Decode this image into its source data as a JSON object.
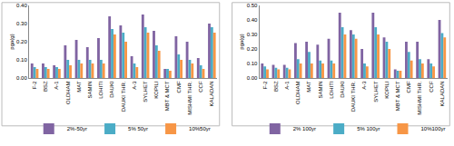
{
  "chart_data": [
    {
      "type": "bar",
      "y_label": "pga(g)",
      "categories": [
        "F-2",
        "BSZ",
        "A-1",
        "OLDHAM",
        "MAT",
        "SAMIN",
        "LOHITI",
        "DAUKI",
        "DAUKI THR.",
        "A-3",
        "SYLHET",
        "KOPILI",
        "MBT & MCT",
        "CMF",
        "MISHMI THR.",
        "CCF",
        "KALADAN"
      ],
      "series": [
        {
          "name": "2%-50yr",
          "color": "#8064a2",
          "values": [
            0.08,
            0.08,
            0.07,
            0.18,
            0.21,
            0.17,
            0.22,
            0.34,
            0.29,
            0.12,
            0.35,
            0.26,
            0.05,
            0.23,
            0.2,
            0.11,
            0.3
          ]
        },
        {
          "name": "5% 50yr",
          "color": "#4bacc6",
          "values": [
            0.06,
            0.06,
            0.06,
            0.1,
            0.1,
            0.1,
            0.1,
            0.27,
            0.25,
            0.08,
            0.28,
            0.18,
            0.05,
            0.13,
            0.1,
            0.07,
            0.28
          ]
        },
        {
          "name": "10%50yr",
          "color": "#f79646",
          "values": [
            0.05,
            0.05,
            0.05,
            0.07,
            0.08,
            0.08,
            0.08,
            0.24,
            0.2,
            0.06,
            0.25,
            0.15,
            0.04,
            0.1,
            0.08,
            0.05,
            0.25
          ]
        }
      ],
      "ylim": [
        0,
        0.4
      ],
      "yticks": [
        {
          "value": 0,
          "label": "0.00"
        },
        {
          "value": 0.1,
          "label": "0.10"
        },
        {
          "value": 0.2,
          "label": "0.20"
        },
        {
          "value": 0.3,
          "label": "0.30"
        },
        {
          "value": 0.4,
          "label": "0.40"
        }
      ],
      "grid": false,
      "legend": "bottom"
    },
    {
      "type": "bar",
      "y_label": "pga(g)",
      "categories": [
        "F-2",
        "BSZ",
        "A-1",
        "OLDHAM",
        "MAT",
        "SAMIN",
        "LOHITI",
        "DAUKI",
        "DAUKI THR.",
        "A-3",
        "SYLHET",
        "KOPILI",
        "MBT & MCT",
        "CMF",
        "MISHMI THR.",
        "CCF",
        "KALADAN"
      ],
      "series": [
        {
          "name": "2% 100yr",
          "color": "#8064a2",
          "values": [
            0.1,
            0.09,
            0.09,
            0.24,
            0.25,
            0.23,
            0.27,
            0.45,
            0.33,
            0.2,
            0.45,
            0.28,
            0.06,
            0.25,
            0.25,
            0.13,
            0.4
          ]
        },
        {
          "name": "5% 100yr",
          "color": "#4bacc6",
          "values": [
            0.08,
            0.07,
            0.07,
            0.13,
            0.18,
            0.12,
            0.12,
            0.35,
            0.3,
            0.1,
            0.35,
            0.25,
            0.05,
            0.18,
            0.13,
            0.1,
            0.31
          ]
        },
        {
          "name": "10%100yr",
          "color": "#f79646",
          "values": [
            0.06,
            0.06,
            0.06,
            0.1,
            0.1,
            0.1,
            0.1,
            0.3,
            0.27,
            0.08,
            0.3,
            0.2,
            0.05,
            0.12,
            0.1,
            0.08,
            0.28
          ]
        }
      ],
      "ylim": [
        0,
        0.5
      ],
      "yticks": [
        {
          "value": 0,
          "label": "0.00"
        },
        {
          "value": 0.1,
          "label": "0.10"
        },
        {
          "value": 0.2,
          "label": "0.20"
        },
        {
          "value": 0.3,
          "label": "0.30"
        },
        {
          "value": 0.4,
          "label": "0.40"
        },
        {
          "value": 0.5,
          "label": "0.50"
        }
      ],
      "grid": false,
      "legend": "bottom"
    }
  ]
}
